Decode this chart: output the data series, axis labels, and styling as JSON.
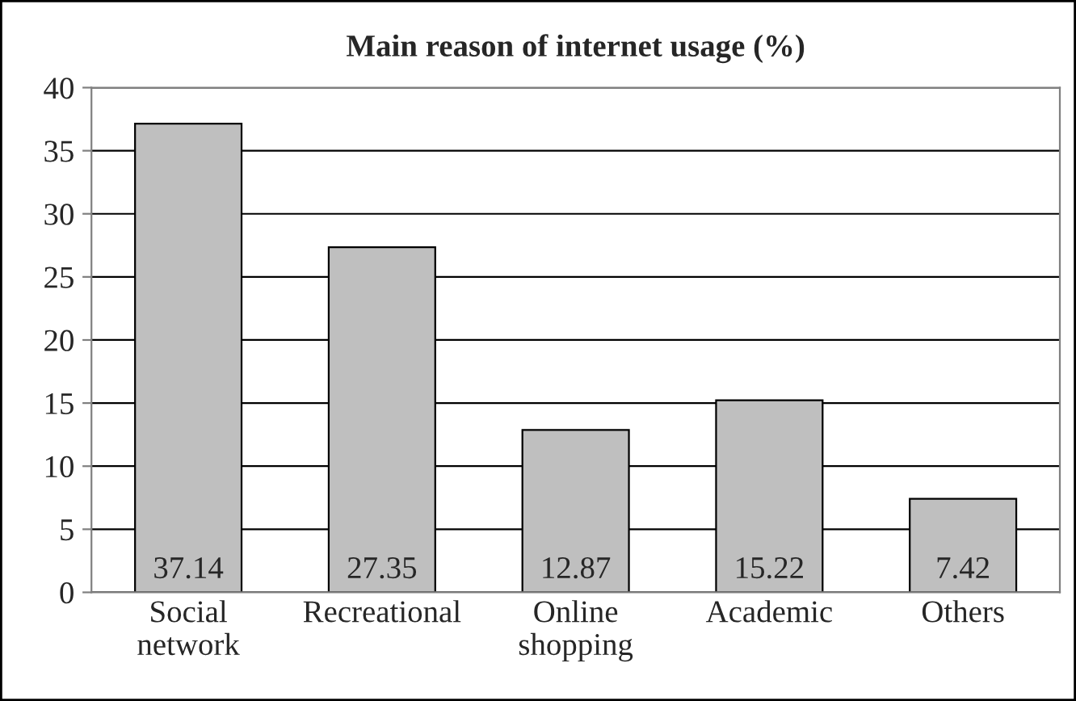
{
  "chart_data": {
    "type": "bar",
    "title": "Main reason of internet usage (%)",
    "categories": [
      "Social\nnetwork",
      "Recreational",
      "Online\nshopping",
      "Academic",
      "Others"
    ],
    "values": [
      37.14,
      27.35,
      12.87,
      15.22,
      7.42
    ],
    "color": "#bfbfbf",
    "ylim": [
      0,
      40
    ],
    "yticks": [
      0,
      5,
      10,
      15,
      20,
      25,
      30,
      35,
      40
    ],
    "grid": "y",
    "data_labels": true
  }
}
